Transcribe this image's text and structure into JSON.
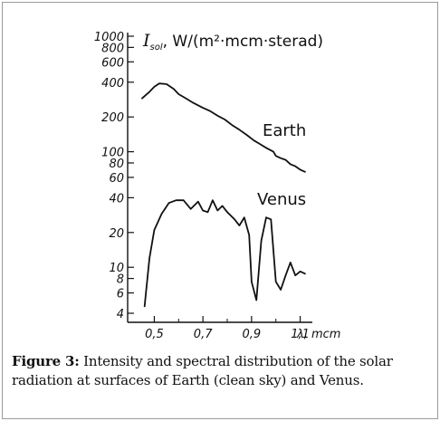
{
  "caption": {
    "label": "Figure 3:",
    "text": " Intensity and spectral distribution of the solar radiation at surfaces of Earth (clean sky) and Venus."
  },
  "chart_data": {
    "type": "line",
    "yscale": "log",
    "ylim": [
      4,
      1000
    ],
    "xlim": [
      0.45,
      1.15
    ],
    "ylabel_symbol": "I",
    "ylabel_sub": "sol",
    "ylabel_units": ", W/(m²·mcm·sterad)",
    "xlabel": "λ, mcm",
    "x_ticks": [
      "0,5",
      "0,7",
      "0,9",
      "1,1"
    ],
    "x_tick_values": [
      0.5,
      0.7,
      0.9,
      1.1
    ],
    "y_ticks": [
      "1000",
      "800",
      "600",
      "400",
      "200",
      "100",
      "80",
      "60",
      "40",
      "20",
      "10",
      "8",
      "6",
      "4"
    ],
    "y_tick_values": [
      1000,
      800,
      600,
      400,
      200,
      100,
      80,
      60,
      40,
      20,
      10,
      8,
      6,
      4
    ],
    "grid": false,
    "series": [
      {
        "name": "Earth",
        "x": [
          0.45,
          0.48,
          0.5,
          0.52,
          0.55,
          0.58,
          0.6,
          0.63,
          0.66,
          0.7,
          0.73,
          0.76,
          0.79,
          0.82,
          0.85,
          0.88,
          0.91,
          0.93,
          0.96,
          0.99,
          1.0,
          1.02,
          1.04,
          1.06,
          1.08,
          1.1,
          1.12
        ],
        "y": [
          290,
          330,
          365,
          390,
          385,
          350,
          315,
          290,
          265,
          240,
          225,
          205,
          190,
          170,
          155,
          140,
          125,
          118,
          108,
          100,
          92,
          88,
          85,
          78,
          75,
          70,
          67
        ]
      },
      {
        "name": "Venus",
        "x": [
          0.46,
          0.48,
          0.5,
          0.53,
          0.56,
          0.59,
          0.62,
          0.65,
          0.68,
          0.7,
          0.72,
          0.74,
          0.76,
          0.78,
          0.8,
          0.83,
          0.85,
          0.87,
          0.89,
          0.9,
          0.92,
          0.94,
          0.96,
          0.98,
          1.0,
          1.02,
          1.04,
          1.06,
          1.08,
          1.1,
          1.12
        ],
        "y": [
          4.6,
          12,
          21,
          29,
          36,
          38,
          38,
          32,
          37,
          31,
          30,
          38,
          31,
          34,
          30,
          26,
          23,
          27,
          19,
          7.5,
          5.2,
          17,
          27,
          26,
          7.5,
          6.4,
          8.5,
          11,
          8.5,
          9.2,
          8.8
        ]
      }
    ]
  }
}
